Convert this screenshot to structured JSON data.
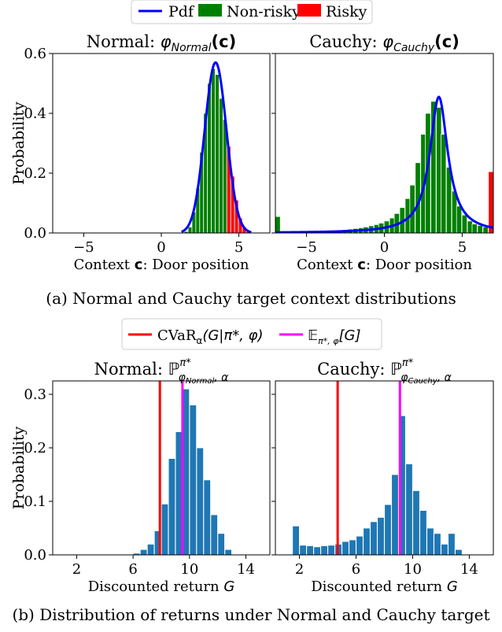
{
  "figure": {
    "caption_a": "(a) Normal and Cauchy target context distributions",
    "caption_b": "(b) Distribution of returns under Normal and Cauchy target"
  },
  "legend_top": {
    "placement": "top-center",
    "items": [
      {
        "label": "Pdf",
        "color": "#0000ff",
        "kind": "line"
      },
      {
        "label": "Non-risky",
        "color": "#008000",
        "kind": "patch"
      },
      {
        "label": "Risky",
        "color": "#ff0000",
        "kind": "patch"
      }
    ]
  },
  "legend_bottom": {
    "placement": "top-center",
    "items": [
      {
        "label": "CVaR",
        "sub": "α",
        "math": "(G|π*, φ)",
        "color": "#ff0000",
        "kind": "line"
      },
      {
        "label": "𝔼",
        "sub": "π*, φ",
        "math": "[G]",
        "color": "#ff00ff",
        "kind": "line"
      }
    ]
  },
  "chart_data": [
    {
      "type": "bar",
      "panel": "top-left",
      "title": "Normal: φ_Normal(c)",
      "title_prefix": "Normal: ",
      "title_math": "φ",
      "title_sub": "Normal",
      "title_arg": "(c)",
      "xlabel_prefix": "Context ",
      "xlabel_sym": "c",
      "xlabel_suffix": ": Door position",
      "ylabel": "Probability",
      "xlim": [
        -7,
        7
      ],
      "ylim": [
        0,
        0.6
      ],
      "xticks": [
        -5,
        0,
        5
      ],
      "yticks": [
        0.0,
        0.2,
        0.4,
        0.6
      ],
      "ytick_labels": [
        "0.0",
        "0.2",
        "0.4",
        "0.6"
      ],
      "grid": false,
      "bin_width": 0.25,
      "non_risky": {
        "color": "#008000",
        "x": [
          1.6,
          1.85,
          2.1,
          2.35,
          2.6,
          2.85,
          3.1,
          3.35,
          3.6,
          3.85,
          4.1
        ],
        "values": [
          0.005,
          0.02,
          0.07,
          0.15,
          0.27,
          0.4,
          0.5,
          0.55,
          0.53,
          0.45,
          0.38
        ]
      },
      "risky": {
        "color": "#ff0000",
        "x": [
          4.35,
          4.6,
          4.85,
          5.1,
          5.35,
          5.6
        ],
        "values": [
          0.29,
          0.19,
          0.11,
          0.05,
          0.02,
          0.005
        ]
      },
      "pdf": {
        "kind": "normal",
        "mean": 3.5,
        "std": 0.7,
        "color": "#0000ff",
        "x_range": [
          1.3,
          5.8
        ]
      }
    },
    {
      "type": "bar",
      "panel": "top-right",
      "title": "Cauchy: φ_Cauchy(c)",
      "title_prefix": "Cauchy: ",
      "title_math": "φ",
      "title_sub": "Cauchy",
      "title_arg": "(c)",
      "xlabel_prefix": "Context ",
      "xlabel_sym": "c",
      "xlabel_suffix": ": Door position",
      "xlim": [
        -7,
        7
      ],
      "ylim": [
        0,
        0.6
      ],
      "xticks": [
        -5,
        0,
        5
      ],
      "yticks": [
        0.0,
        0.2,
        0.4,
        0.6
      ],
      "grid": false,
      "bin_width": 0.33,
      "non_risky": {
        "color": "#008000",
        "x": [
          -6.85,
          -6.5,
          -6.2,
          -5.85,
          -5.5,
          -5.2,
          -4.85,
          -4.5,
          -4.2,
          -3.85,
          -3.5,
          -3.2,
          -2.85,
          -2.5,
          -2.2,
          -1.85,
          -1.5,
          -1.2,
          -0.85,
          -0.5,
          -0.2,
          0.15,
          0.5,
          0.8,
          1.15,
          1.5,
          1.8,
          2.15,
          2.5,
          2.8,
          3.15,
          3.5,
          3.8,
          4.15,
          4.5,
          4.8,
          5.15,
          5.5,
          5.8,
          6.15,
          6.5
        ],
        "values": [
          0.055,
          0.002,
          0.002,
          0.003,
          0.003,
          0.004,
          0.004,
          0.005,
          0.006,
          0.006,
          0.007,
          0.008,
          0.009,
          0.011,
          0.013,
          0.015,
          0.017,
          0.02,
          0.024,
          0.028,
          0.033,
          0.04,
          0.05,
          0.065,
          0.085,
          0.115,
          0.16,
          0.235,
          0.33,
          0.4,
          0.44,
          0.42,
          0.33,
          0.22,
          0.14,
          0.09,
          0.06,
          0.04,
          0.03,
          0.025,
          0.02
        ]
      },
      "risky": {
        "color": "#ff0000",
        "x": [
          6.85
        ],
        "values": [
          0.205
        ]
      },
      "pdf": {
        "kind": "cauchy",
        "loc": 3.5,
        "scale": 0.7,
        "color": "#0000ff",
        "x_range": [
          -7,
          7
        ]
      }
    },
    {
      "type": "bar",
      "panel": "bottom-left",
      "title": "Normal: ℙ^{π*}_{φ_Normal, α}",
      "title_prefix": "Normal: ",
      "title_math": "ℙ",
      "title_sup": "π*",
      "title_sub": "φ",
      "title_subsub": "Normal",
      "title_sub_tail": ", α",
      "xlabel_prefix": "Discounted return ",
      "xlabel_sym": "G",
      "ylabel": "Probability",
      "xlim": [
        0.3,
        15.7
      ],
      "ylim": [
        0,
        0.325
      ],
      "xticks": [
        2,
        6,
        10,
        14
      ],
      "yticks": [
        0.0,
        0.1,
        0.2,
        0.3
      ],
      "ytick_labels": [
        "0.0",
        "0.1",
        "0.2",
        "0.3"
      ],
      "grid": false,
      "bar_color": "#1f77b4",
      "bin_width": 0.48,
      "x": [
        6.25,
        6.75,
        7.25,
        7.75,
        8.25,
        8.75,
        9.25,
        9.75,
        10.25,
        10.75,
        11.25,
        11.75,
        12.25,
        12.75
      ],
      "values": [
        0.003,
        0.01,
        0.02,
        0.045,
        0.095,
        0.18,
        0.23,
        0.31,
        0.28,
        0.2,
        0.14,
        0.075,
        0.04,
        0.01
      ],
      "vlines": [
        {
          "name": "CVaR",
          "x": 7.9,
          "color": "#ff0000"
        },
        {
          "name": "E",
          "x": 9.5,
          "color": "#ff00ff"
        }
      ]
    },
    {
      "type": "bar",
      "panel": "bottom-right",
      "title": "Cauchy: ℙ^{π*}_{φ_Cauchy, α}",
      "title_prefix": "Cauchy: ",
      "title_math": "ℙ",
      "title_sup": "π*",
      "title_sub": "φ",
      "title_subsub": "Cauchy",
      "title_sub_tail": ", α",
      "xlabel_prefix": "Discounted return ",
      "xlabel_sym": "G",
      "xlim": [
        0.3,
        15.7
      ],
      "ylim": [
        0,
        0.325
      ],
      "xticks": [
        2,
        6,
        10,
        14
      ],
      "yticks": [
        0.0,
        0.1,
        0.2,
        0.3
      ],
      "grid": false,
      "bar_color": "#1f77b4",
      "bin_width": 0.48,
      "x": [
        1.75,
        2.25,
        2.75,
        3.25,
        3.75,
        4.25,
        4.75,
        5.25,
        5.75,
        6.25,
        6.75,
        7.25,
        7.75,
        8.25,
        8.75,
        9.25,
        9.75,
        10.25,
        10.75,
        11.25,
        11.75,
        12.25,
        12.75,
        13.25
      ],
      "values": [
        0.054,
        0.018,
        0.017,
        0.015,
        0.017,
        0.018,
        0.02,
        0.025,
        0.028,
        0.035,
        0.05,
        0.062,
        0.07,
        0.094,
        0.15,
        0.26,
        0.17,
        0.12,
        0.083,
        0.05,
        0.04,
        0.02,
        0.04,
        0.01
      ],
      "vlines": [
        {
          "name": "CVaR",
          "x": 4.7,
          "color": "#ff0000"
        },
        {
          "name": "E",
          "x": 9.1,
          "color": "#ff00ff"
        }
      ]
    }
  ]
}
